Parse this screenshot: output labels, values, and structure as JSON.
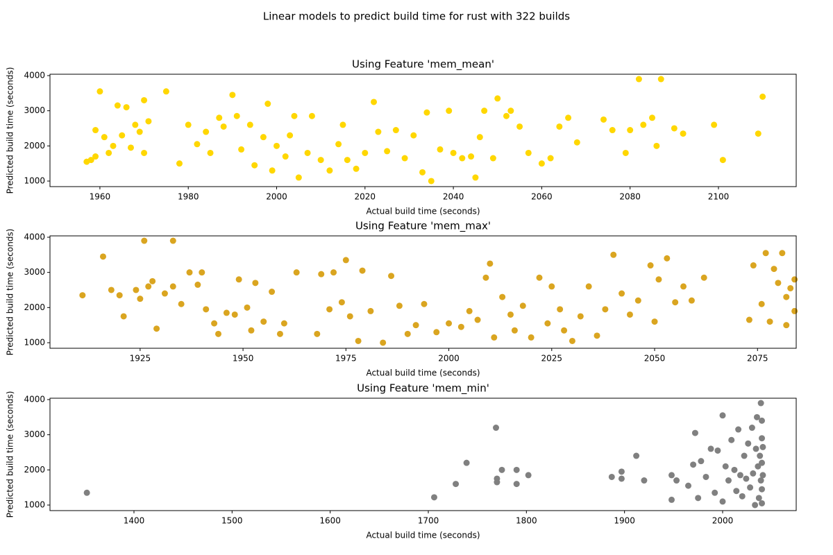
{
  "title": "Linear models to predict build time for rust with 322 builds",
  "chart_data": [
    {
      "type": "scatter",
      "title": "Using Feature 'mem_mean'",
      "xlabel": "Actual build time (seconds)",
      "ylabel": "Predicted build time (seconds)",
      "color": "#ffd700",
      "xlim": [
        1948.7,
        2117.6
      ],
      "ylim": [
        842,
        4039
      ],
      "xticks": [
        1960,
        1980,
        2000,
        2020,
        2040,
        2060,
        2080,
        2100
      ],
      "yticks": [
        1000,
        2000,
        3000,
        4000
      ],
      "x": [
        1957,
        1958,
        1959,
        1960,
        1959,
        1961,
        1962,
        1963,
        1964,
        1965,
        1966,
        1967,
        1968,
        1969,
        1970,
        1971,
        1970,
        1975,
        1978,
        1980,
        1982,
        1984,
        1985,
        1987,
        1988,
        1990,
        1991,
        1992,
        1994,
        1995,
        1997,
        1998,
        1999,
        2000,
        2002,
        2003,
        2004,
        2005,
        2007,
        2008,
        2010,
        2012,
        2014,
        2015,
        2016,
        2018,
        2020,
        2022,
        2023,
        2025,
        2027,
        2029,
        2031,
        2033,
        2034,
        2035,
        2037,
        2039,
        2040,
        2042,
        2044,
        2045,
        2046,
        2047,
        2049,
        2050,
        2052,
        2053,
        2055,
        2057,
        2060,
        2062,
        2064,
        2066,
        2068,
        2074,
        2076,
        2079,
        2080,
        2082,
        2083,
        2085,
        2086,
        2087,
        2090,
        2092,
        2099,
        2101,
        2109,
        2110
      ],
      "values": [
        1550,
        1600,
        1700,
        3550,
        2450,
        2250,
        1800,
        2000,
        3150,
        2300,
        3100,
        1950,
        2600,
        2400,
        3300,
        2700,
        1800,
        3550,
        1500,
        2600,
        2050,
        2400,
        1800,
        2800,
        2550,
        3450,
        2850,
        1900,
        2600,
        1450,
        2250,
        3200,
        1300,
        2000,
        1700,
        2300,
        2850,
        1100,
        1800,
        2850,
        1600,
        1300,
        2050,
        2600,
        1600,
        1350,
        1800,
        3250,
        2400,
        1850,
        2450,
        1650,
        2300,
        1250,
        2950,
        1000,
        1900,
        3000,
        1800,
        1650,
        1700,
        1100,
        2250,
        3000,
        1650,
        3350,
        2850,
        3000,
        2550,
        1800,
        1500,
        1650,
        2550,
        2800,
        2100,
        2750,
        2450,
        1800,
        2450,
        3900,
        2600,
        2800,
        2000,
        3900,
        2500,
        2350,
        2600,
        1600,
        2350,
        3400
      ]
    },
    {
      "type": "scatter",
      "title": "Using Feature 'mem_max'",
      "xlabel": "Actual build time (seconds)",
      "ylabel": "Predicted build time (seconds)",
      "color": "#daa520",
      "xlim": [
        1903.1,
        2084.4
      ],
      "ylim": [
        842,
        4039
      ],
      "xticks": [
        1925,
        1950,
        1975,
        2000,
        2025,
        2050,
        2075
      ],
      "yticks": [
        1000,
        2000,
        3000,
        4000
      ],
      "x": [
        1911,
        1916,
        1918,
        1920,
        1921,
        1924,
        1925,
        1926,
        1927,
        1928,
        1929,
        1931,
        1933,
        1933,
        1935,
        1937,
        1939,
        1940,
        1941,
        1943,
        1944,
        1946,
        1948,
        1949,
        1951,
        1952,
        1953,
        1955,
        1957,
        1959,
        1960,
        1963,
        1968,
        1969,
        1971,
        1972,
        1974,
        1975,
        1976,
        1978,
        1979,
        1981,
        1984,
        1986,
        1988,
        1990,
        1992,
        1994,
        1997,
        2000,
        2003,
        2005,
        2007,
        2009,
        2010,
        2011,
        2013,
        2015,
        2016,
        2018,
        2020,
        2022,
        2024,
        2025,
        2027,
        2028,
        2030,
        2032,
        2034,
        2036,
        2038,
        2040,
        2042,
        2044,
        2046,
        2049,
        2050,
        2051,
        2053,
        2055,
        2057,
        2059,
        2062,
        2073,
        2074,
        2076,
        2077,
        2078,
        2079,
        2080,
        2081,
        2082,
        2082,
        2083,
        2084,
        2084
      ],
      "values": [
        2350,
        3450,
        2500,
        2350,
        1750,
        2500,
        2250,
        3900,
        2600,
        2750,
        1400,
        2400,
        3900,
        2600,
        2100,
        3000,
        2650,
        3000,
        1950,
        1550,
        1250,
        1850,
        1800,
        2800,
        2000,
        1350,
        2700,
        1600,
        2450,
        1250,
        1550,
        3000,
        1250,
        2950,
        1950,
        3000,
        2150,
        3350,
        1750,
        1050,
        3050,
        1900,
        1000,
        2900,
        2050,
        1250,
        1500,
        2100,
        1300,
        1550,
        1450,
        1900,
        1650,
        2850,
        3250,
        1150,
        2300,
        1800,
        1350,
        2050,
        1150,
        2850,
        1550,
        2600,
        1950,
        1350,
        1050,
        1750,
        2600,
        1200,
        1950,
        3500,
        2400,
        1800,
        2200,
        3200,
        1600,
        2800,
        3400,
        2150,
        2600,
        2200,
        2850,
        1650,
        3200,
        2100,
        3550,
        1600,
        3100,
        2700,
        3550,
        2300,
        1500,
        2550,
        2800,
        1900
      ]
    },
    {
      "type": "scatter",
      "title": "Using Feature 'mem_min'",
      "xlabel": "Actual build time (seconds)",
      "ylabel": "Predicted build time (seconds)",
      "color": "#808080",
      "xlim": [
        1314.4,
        2075
      ],
      "ylim": [
        842,
        4039
      ],
      "xticks": [
        1400,
        1500,
        1600,
        1700,
        1800,
        1900,
        2000
      ],
      "yticks": [
        1000,
        2000,
        3000,
        4000
      ],
      "x": [
        1352,
        1706,
        1728,
        1739,
        1769,
        1770,
        1770,
        1775,
        1790,
        1790,
        1802,
        1887,
        1897,
        1897,
        1912,
        1920,
        1948,
        1948,
        1953,
        1965,
        1972,
        1970,
        1975,
        1978,
        1983,
        1988,
        1992,
        1995,
        2000,
        2000,
        2003,
        2006,
        2009,
        2012,
        2014,
        2016,
        2018,
        2020,
        2022,
        2024,
        2026,
        2028,
        2030,
        2031,
        2033,
        2034,
        2035,
        2036,
        2037,
        2038,
        2039,
        2039,
        2040,
        2040,
        2040,
        2040,
        2040,
        2041,
        2041
      ],
      "values": [
        1350,
        1220,
        1600,
        2200,
        3200,
        1750,
        1650,
        2000,
        2000,
        1600,
        1850,
        1800,
        1750,
        1950,
        2400,
        1700,
        1150,
        1850,
        1700,
        1550,
        3050,
        2150,
        1200,
        2250,
        1800,
        2600,
        1350,
        2550,
        3550,
        1100,
        2100,
        1700,
        2850,
        2000,
        1400,
        3150,
        1850,
        1250,
        2400,
        1750,
        2750,
        1500,
        3200,
        1900,
        1000,
        2600,
        3500,
        2100,
        1200,
        2400,
        3900,
        1700,
        3400,
        2900,
        1450,
        2200,
        1050,
        1850,
        2650
      ]
    }
  ]
}
